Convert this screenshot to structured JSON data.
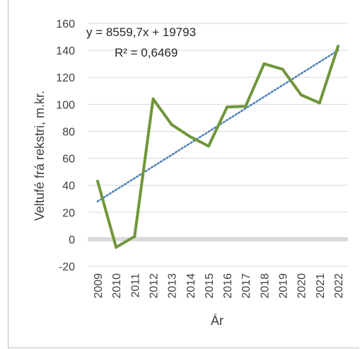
{
  "chart_data": {
    "type": "line",
    "xlabel": "Ár",
    "ylabel": "Veltufé frá rekstri, m.kr.",
    "x": [
      "2009",
      "2010",
      "2011",
      "2012",
      "2013",
      "2014",
      "2015",
      "2016",
      "2017",
      "2018",
      "2019",
      "2020",
      "2021",
      "2022"
    ],
    "series": [
      {
        "name": "",
        "values": [
          43,
          -6,
          2,
          104,
          85,
          76,
          69,
          98,
          98.5,
          130,
          126,
          107,
          101,
          143
        ],
        "color": "#70963a"
      }
    ],
    "trendline": {
      "type": "linear",
      "equation": "y = 8559,7x + 19793",
      "r_squared": "R² = 0,6469",
      "start": 28,
      "end": 140,
      "color": "#4a7ebb",
      "style": "dotted"
    },
    "ylim": [
      -20,
      160
    ],
    "yticks": [
      "-20",
      "0",
      "20",
      "40",
      "60",
      "80",
      "100",
      "120",
      "140",
      "160"
    ],
    "grid": "horizontal",
    "zero_line_color": "#d9d9d9"
  }
}
